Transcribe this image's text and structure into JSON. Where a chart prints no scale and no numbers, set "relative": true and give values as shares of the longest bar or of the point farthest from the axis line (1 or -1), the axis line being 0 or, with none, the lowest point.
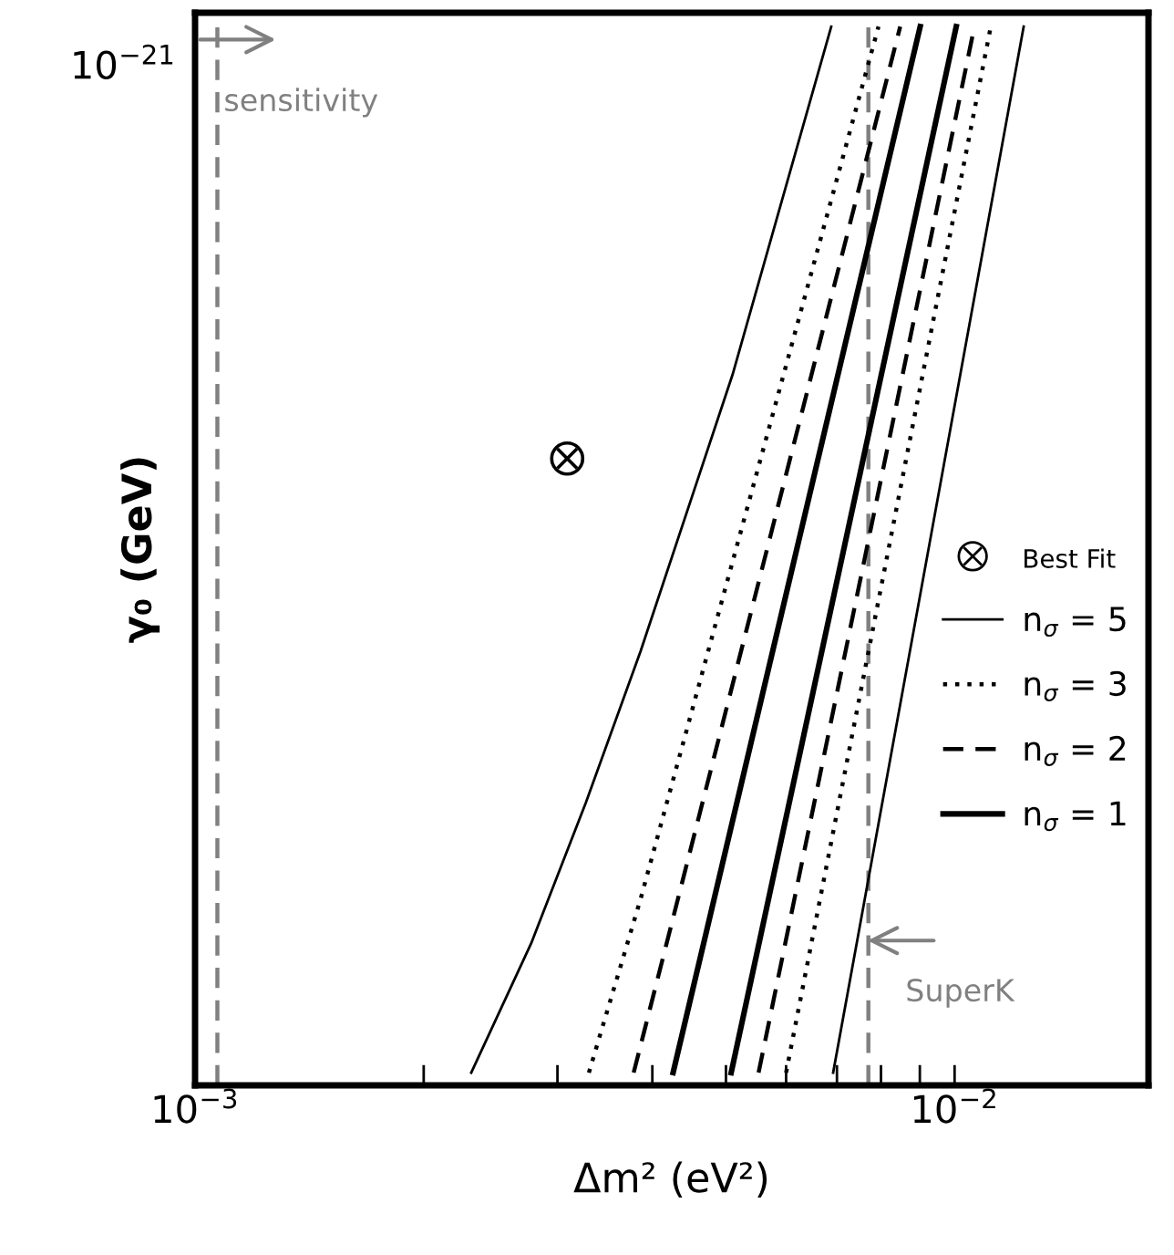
{
  "chart_data": {
    "type": "line",
    "xlabel": "Δm² (eV²)",
    "ylabel": "γ₀ (GeV)",
    "log": "x",
    "relative": true,
    "xlim": [
      0.001,
      0.018
    ],
    "xticks": [
      {
        "value": 0.001,
        "label": "10$^{−3}$"
      },
      {
        "value": 0.002,
        "label": null
      },
      {
        "value": 0.003,
        "label": null
      },
      {
        "value": 0.004,
        "label": null
      },
      {
        "value": 0.005,
        "label": null
      },
      {
        "value": 0.006,
        "label": null
      },
      {
        "value": 0.007,
        "label": null
      },
      {
        "value": 0.008,
        "label": null
      },
      {
        "value": 0.009,
        "label": null
      },
      {
        "value": 0.01,
        "label": "10$^{−2}$"
      }
    ],
    "annotations": [
      "10$^{−21}$"
    ],
    "grid": false,
    "legend": "right",
    "marker": "none",
    "series": [
      {
        "type": "scatter",
        "name": "Best Fit",
        "color": "#000000",
        "marker": "circle",
        "x": [
          0.00309
        ],
        "values": [
          0.592
        ]
      },
      {
        "name": "n$_{σ}$ = 5",
        "color": "#000000",
        "line_style": "solid",
        "x": [
          0.00231,
          0.00277,
          0.00327,
          0.00386,
          0.0051,
          0.00688
        ],
        "values": [
          0.012,
          0.134,
          0.267,
          0.41,
          0.671,
          1
        ]
      },
      {
        "color": "#000000",
        "line_style": "solid",
        "x": [
          0.00692,
          0.01233
        ],
        "values": [
          0.012,
          1
        ]
      },
      {
        "name": "n$_{σ}$ = 3",
        "color": "#000000",
        "line_style": "dotted",
        "x": [
          0.0033,
          0.00386,
          0.00794
        ],
        "values": [
          0.012,
          0.176,
          1
        ]
      },
      {
        "color": "#000000",
        "line_style": "dotted",
        "x": [
          0.006,
          0.01116
        ],
        "values": [
          0.012,
          1
        ]
      },
      {
        "name": "n$_{σ}$ = 2",
        "color": "#000000",
        "line_style": "dashed",
        "x": [
          0.00378,
          0.00848
        ],
        "values": [
          0.012,
          1
        ]
      },
      {
        "color": "#000000",
        "line_style": "dashed",
        "x": [
          0.00552,
          0.01062
        ],
        "values": [
          0.012,
          1
        ]
      },
      {
        "name": "n$_{σ}$ = 1",
        "color": "#000000",
        "line_style": "solid",
        "x": [
          0.00426,
          0.00901
        ],
        "values": [
          0.012,
          1
        ]
      },
      {
        "color": "#000000",
        "line_style": "solid",
        "x": [
          0.00508,
          0.01005
        ],
        "values": [
          0.012,
          1
        ]
      }
    ],
    "ref_lines": [
      {
        "axis": "x",
        "value": 0.00107,
        "label": "sensitivity",
        "color": "#808080",
        "line_style": "dashed"
      },
      {
        "axis": "x",
        "value": 0.0077,
        "label": "SuperK",
        "color": "#808080",
        "line_style": "dashed"
      }
    ]
  }
}
